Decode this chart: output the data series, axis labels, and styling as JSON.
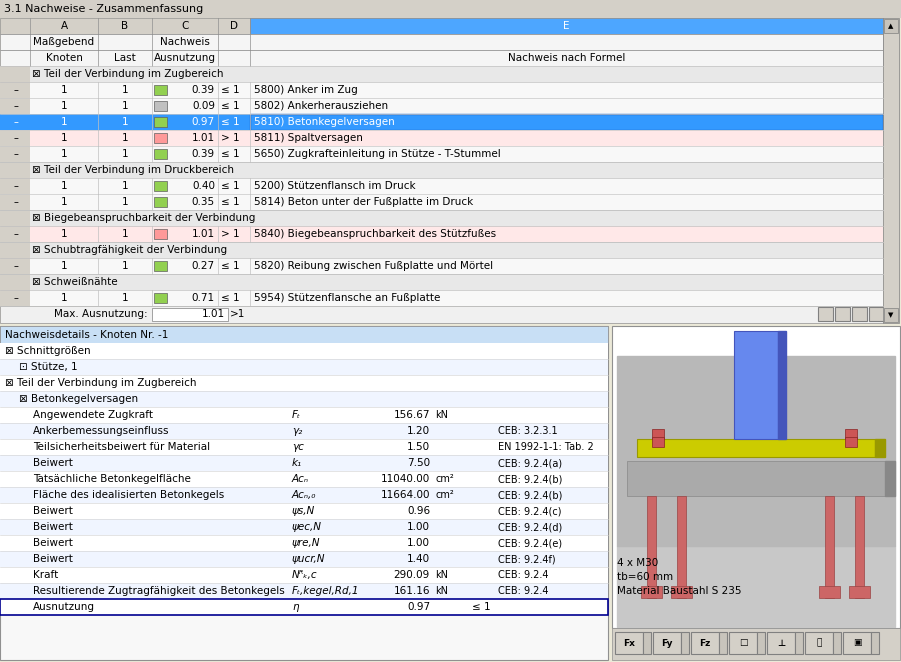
{
  "title_bar": "3.1 Nachweise - Zusammenfassung",
  "top_table_rows": [
    {
      "group": "Teil der Verbindung im Zugbereich",
      "is_group": true
    },
    {
      "knoten": "1",
      "last": "1",
      "value": "0.39",
      "rel": "≤ 1",
      "desc": "5800) Anker im Zug",
      "ind_color": "#92d050",
      "selected": false,
      "over": false
    },
    {
      "knoten": "1",
      "last": "1",
      "value": "0.09",
      "rel": "≤ 1",
      "desc": "5802) Ankerherausziehen",
      "ind_color": "#c0c0c0",
      "selected": false,
      "over": false
    },
    {
      "knoten": "1",
      "last": "1",
      "value": "0.97",
      "rel": "≤ 1",
      "desc": "5810) Betonkegelversagen",
      "ind_color": "#92d050",
      "selected": true,
      "over": false
    },
    {
      "knoten": "1",
      "last": "1",
      "value": "1.01",
      "rel": "> 1",
      "desc": "5811) Spaltversagen",
      "ind_color": "#ff9999",
      "selected": false,
      "over": true
    },
    {
      "knoten": "1",
      "last": "1",
      "value": "0.39",
      "rel": "≤ 1",
      "desc": "5650) Zugkrafteinleitung in Stütze - T-Stummel",
      "ind_color": "#92d050",
      "selected": false,
      "over": false
    },
    {
      "group": "Teil der Verbindung im Druckbereich",
      "is_group": true
    },
    {
      "knoten": "1",
      "last": "1",
      "value": "0.40",
      "rel": "≤ 1",
      "desc": "5200) Stützenflansch im Druck",
      "ind_color": "#92d050",
      "selected": false,
      "over": false
    },
    {
      "knoten": "1",
      "last": "1",
      "value": "0.35",
      "rel": "≤ 1",
      "desc": "5814) Beton unter der Fußplatte im Druck",
      "ind_color": "#92d050",
      "selected": false,
      "over": false
    },
    {
      "group": "Biegebeanspruchbarkeit der Verbindung",
      "is_group": true
    },
    {
      "knoten": "1",
      "last": "1",
      "value": "1.01",
      "rel": "> 1",
      "desc": "5840) Biegebeanspruchbarkeit des Stützfußes",
      "ind_color": "#ff9999",
      "selected": false,
      "over": true
    },
    {
      "group": "Schubtragfähigkeit der Verbindung",
      "is_group": true
    },
    {
      "knoten": "1",
      "last": "1",
      "value": "0.27",
      "rel": "≤ 1",
      "desc": "5820) Reibung zwischen Fußplatte und Mörtel",
      "ind_color": "#92d050",
      "selected": false,
      "over": false
    },
    {
      "group": "Schweißnähte",
      "is_group": true
    },
    {
      "knoten": "1",
      "last": "1",
      "value": "0.71",
      "rel": "≤ 1",
      "desc": "5954) Stützenflansche an Fußplatte",
      "ind_color": "#92d050",
      "selected": false,
      "over": false
    }
  ],
  "max_label": "Max. Ausnutzung:",
  "max_value": "1.01",
  "max_rel": ">1",
  "bottom_title": "Nachweisdetails - Knoten Nr. -1",
  "detail_rows": [
    {
      "label": "⊠ Schnittgrößen",
      "is_section": true,
      "indent": 0,
      "symbol": "",
      "value": "",
      "unit": "",
      "ref": ""
    },
    {
      "label": "⊡ Stütze, 1",
      "is_section": true,
      "indent": 1,
      "symbol": "",
      "value": "",
      "unit": "",
      "ref": ""
    },
    {
      "label": "⊠ Teil der Verbindung im Zugbereich",
      "is_section": true,
      "indent": 0,
      "symbol": "",
      "value": "",
      "unit": "",
      "ref": ""
    },
    {
      "label": "⊠ Betonkegelversagen",
      "is_section": true,
      "indent": 1,
      "symbol": "",
      "value": "",
      "unit": "",
      "ref": ""
    },
    {
      "label": "Angewendete Zugkraft",
      "indent": 2,
      "symbol": "Fₜ",
      "value": "156.67",
      "unit": "kN",
      "ref": ""
    },
    {
      "label": "Ankerbemessungseinfluss",
      "indent": 2,
      "symbol": "γ₂",
      "value": "1.20",
      "unit": "",
      "ref": "CEB: 3.2.3.1"
    },
    {
      "label": "Teilsicherheitsbeiwert für Material",
      "indent": 2,
      "symbol": "γc",
      "value": "1.50",
      "unit": "",
      "ref": "EN 1992-1-1: Tab. 2"
    },
    {
      "label": "Beiwert",
      "indent": 2,
      "symbol": "k₁",
      "value": "7.50",
      "unit": "",
      "ref": "CEB: 9.2.4(a)"
    },
    {
      "label": "Tatsächliche Betonkegelfläche",
      "indent": 2,
      "symbol": "Aᴄₙ",
      "value": "11040.00",
      "unit": "cm²",
      "ref": "CEB: 9.2.4(b)"
    },
    {
      "label": "Fläche des idealisierten Betonkegels",
      "indent": 2,
      "symbol": "Aᴄₙ,₀",
      "value": "11664.00",
      "unit": "cm²",
      "ref": "CEB: 9.2.4(b)"
    },
    {
      "label": "Beiwert",
      "indent": 2,
      "symbol": "ψs,N",
      "value": "0.96",
      "unit": "",
      "ref": "CEB: 9.2.4(c)"
    },
    {
      "label": "Beiwert",
      "indent": 2,
      "symbol": "ψec,N",
      "value": "1.00",
      "unit": "",
      "ref": "CEB: 9.2.4(d)"
    },
    {
      "label": "Beiwert",
      "indent": 2,
      "symbol": "ψre,N",
      "value": "1.00",
      "unit": "",
      "ref": "CEB: 9.2.4(e)"
    },
    {
      "label": "Beiwert",
      "indent": 2,
      "symbol": "ψucr,N",
      "value": "1.40",
      "unit": "",
      "ref": "CEB: 9.2.4f)"
    },
    {
      "label": "Kraft",
      "indent": 2,
      "symbol": "Nᴿₖ,c",
      "value": "290.09",
      "unit": "kN",
      "ref": "CEB: 9.2.4"
    },
    {
      "label": "Resultierende Zugtragfähigkeit des Betonkegels",
      "indent": 2,
      "symbol": "Fₜ,kegel,Rd,1",
      "value": "161.16",
      "unit": "kN",
      "ref": "CEB: 9.2.4"
    },
    {
      "label": "Ausnutzung",
      "indent": 2,
      "symbol": "η",
      "value": "0.97",
      "unit": "",
      "rel": "≤ 1",
      "ref": "",
      "is_result": true
    }
  ],
  "image_text_lines": [
    "4 x M30",
    "tb=60 mm",
    "Material Baustahl S 235"
  ]
}
